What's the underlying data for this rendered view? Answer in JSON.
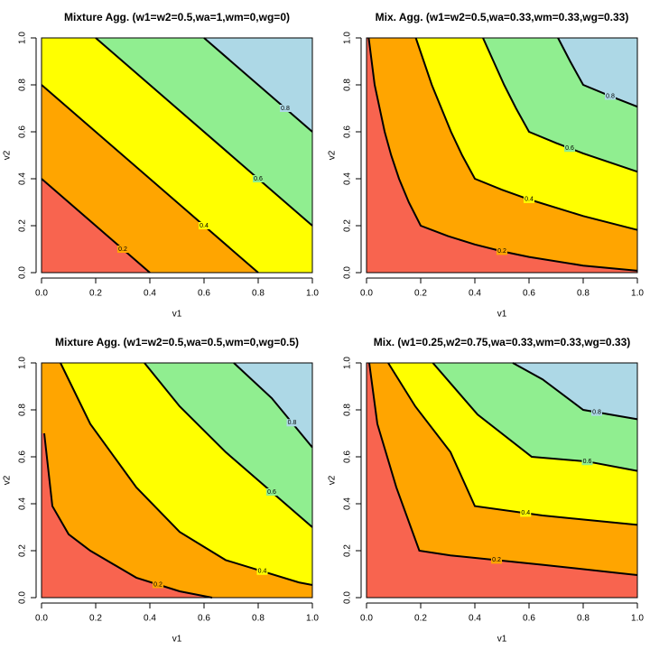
{
  "chart_data": [
    {
      "type": "contour",
      "title": "Mixture Agg. (w1=w2=0.5,wa=1,wm=0,wg=0)",
      "xlabel": "v1",
      "ylabel": "v2",
      "xlim": [
        0,
        1
      ],
      "ylim": [
        0,
        1
      ],
      "xticks": [
        {
          "value": 0,
          "label": "0.0"
        },
        0.2,
        0.4,
        0.6,
        0.8,
        {
          "value": 1,
          "label": "1.0"
        }
      ],
      "yticks": [
        {
          "value": 0,
          "label": "0.0"
        },
        0.2,
        0.4,
        0.6,
        0.8,
        {
          "value": 1,
          "label": "1.0"
        }
      ],
      "colors": [
        "#f8644f",
        "#ffa500",
        "#ffff00",
        "#90ee90",
        "#add8e6"
      ],
      "contours": [
        {
          "level": 0.2,
          "x": [
            0,
            0.4
          ],
          "y": [
            0.4,
            0
          ]
        },
        {
          "level": 0.4,
          "x": [
            0,
            0.8
          ],
          "y": [
            0.8,
            0
          ]
        },
        {
          "level": 0.6,
          "x": [
            0.2,
            1
          ],
          "y": [
            1,
            0.2
          ]
        },
        {
          "level": 0.8,
          "x": [
            0.6,
            1
          ],
          "y": [
            1,
            0.6
          ]
        }
      ]
    },
    {
      "type": "contour",
      "title": "Mix. Agg. (w1=w2=0.5,wa=0.33,wm=0.33,wg=0.33)",
      "xlabel": "v1",
      "ylabel": "v2",
      "xlim": [
        0,
        1
      ],
      "ylim": [
        0,
        1
      ],
      "xticks": [
        {
          "value": 0,
          "label": "0.0"
        },
        0.2,
        0.4,
        0.6,
        0.8,
        {
          "value": 1,
          "label": "1.0"
        }
      ],
      "yticks": [
        {
          "value": 0,
          "label": "0.0"
        },
        0.2,
        0.4,
        0.6,
        0.8,
        {
          "value": 1,
          "label": "1.0"
        }
      ],
      "colors": [
        "#f8644f",
        "#ffa500",
        "#ffff00",
        "#90ee90",
        "#add8e6"
      ],
      "contours": [
        {
          "level": 0.2,
          "x": [
            0.008,
            0.03,
            0.067,
            0.091,
            0.12,
            0.156,
            0.2,
            0.3,
            0.4,
            0.5,
            0.6,
            0.8,
            1
          ],
          "y": [
            1,
            0.8,
            0.6,
            0.5,
            0.4,
            0.3,
            0.2,
            0.156,
            0.12,
            0.091,
            0.067,
            0.03,
            0.008
          ]
        },
        {
          "level": 0.4,
          "x": [
            0.182,
            0.241,
            0.312,
            0.353,
            0.4,
            0.5,
            0.6,
            0.8,
            1
          ],
          "y": [
            1,
            0.8,
            0.6,
            0.5,
            0.4,
            0.353,
            0.312,
            0.241,
            0.182
          ]
        },
        {
          "level": 0.6,
          "x": [
            0.43,
            0.508,
            0.552,
            0.6,
            0.7,
            0.8,
            1
          ],
          "y": [
            1,
            0.8,
            0.7,
            0.6,
            0.552,
            0.508,
            0.43
          ]
        },
        {
          "level": 0.8,
          "x": [
            0.707,
            0.752,
            0.8,
            0.9,
            1
          ],
          "y": [
            1,
            0.9,
            0.8,
            0.752,
            0.707
          ]
        }
      ]
    },
    {
      "type": "contour",
      "title": "Mixture Agg. (w1=w2=0.5,wa=0.5,wm=0,wg=0.5)",
      "xlabel": "v1",
      "ylabel": "v2",
      "xlim": [
        0,
        1
      ],
      "ylim": [
        0,
        1
      ],
      "xticks": [
        {
          "value": 0,
          "label": "0.0"
        },
        0.2,
        0.4,
        0.6,
        0.8,
        {
          "value": 1,
          "label": "1.0"
        }
      ],
      "yticks": [
        {
          "value": 0,
          "label": "0.0"
        },
        0.2,
        0.4,
        0.6,
        0.8,
        {
          "value": 1,
          "label": "1.0"
        }
      ],
      "colors": [
        "#f8644f",
        "#ffa500",
        "#ffff00",
        "#90ee90",
        "#add8e6"
      ],
      "contours": [
        {
          "level": 0.2,
          "x": [
            0.01,
            0.04,
            0.1,
            0.18,
            0.35,
            0.51,
            0.63
          ],
          "y": [
            0.7,
            0.39,
            0.27,
            0.2,
            0.085,
            0.027,
            0
          ]
        },
        {
          "level": 0.4,
          "x": [
            0.07,
            0.18,
            0.35,
            0.51,
            0.68,
            0.95,
            1
          ],
          "y": [
            1,
            0.74,
            0.47,
            0.28,
            0.16,
            0.065,
            0.054
          ]
        },
        {
          "level": 0.6,
          "x": [
            0.38,
            0.51,
            0.68,
            0.85,
            1
          ],
          "y": [
            1,
            0.815,
            0.62,
            0.45,
            0.3
          ]
        },
        {
          "level": 0.8,
          "x": [
            0.71,
            0.85,
            1
          ],
          "y": [
            1,
            0.85,
            0.64
          ]
        }
      ]
    },
    {
      "type": "contour",
      "title": "Mix. (w1=0.25,w2=0.75,wa=0.33,wm=0.33,wg=0.33)",
      "xlabel": "v1",
      "ylabel": "v2",
      "xlim": [
        0,
        1
      ],
      "ylim": [
        0,
        1
      ],
      "xticks": [
        {
          "value": 0,
          "label": "0.0"
        },
        0.2,
        0.4,
        0.6,
        0.8,
        {
          "value": 1,
          "label": "1.0"
        }
      ],
      "yticks": [
        {
          "value": 0,
          "label": "0.0"
        },
        0.2,
        0.4,
        0.6,
        0.8,
        {
          "value": 1,
          "label": "1.0"
        }
      ],
      "colors": [
        "#f8644f",
        "#ffa500",
        "#ffff00",
        "#90ee90",
        "#add8e6"
      ],
      "contours": [
        {
          "level": 0.2,
          "x": [
            0.01,
            0.04,
            0.11,
            0.195,
            0.31,
            0.65,
            1
          ],
          "y": [
            1,
            0.74,
            0.47,
            0.2,
            0.18,
            0.14,
            0.096
          ]
        },
        {
          "level": 0.4,
          "x": [
            0.08,
            0.18,
            0.31,
            0.4,
            0.65,
            1
          ],
          "y": [
            1,
            0.815,
            0.62,
            0.39,
            0.35,
            0.31
          ]
        },
        {
          "level": 0.6,
          "x": [
            0.245,
            0.41,
            0.61,
            0.815,
            1
          ],
          "y": [
            1,
            0.78,
            0.6,
            0.58,
            0.54
          ]
        },
        {
          "level": 0.8,
          "x": [
            0.54,
            0.65,
            0.8,
            1
          ],
          "y": [
            1,
            0.93,
            0.8,
            0.76
          ]
        }
      ]
    }
  ]
}
